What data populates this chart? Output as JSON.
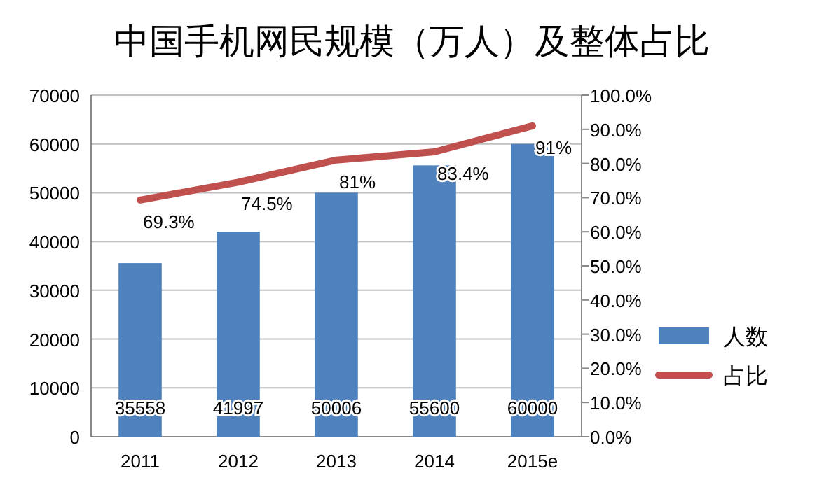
{
  "chart_data": {
    "type": "bar",
    "title": "中国手机网民规模（万人）及整体占比",
    "categories": [
      "2011",
      "2012",
      "2013",
      "2014",
      "2015e"
    ],
    "series": [
      {
        "name": "人数",
        "color": "#4f81bd",
        "values": [
          35558,
          41997,
          50006,
          55600,
          60000
        ],
        "value_labels": [
          "35558",
          "41997",
          "50006",
          "55600",
          "60000"
        ]
      },
      {
        "name": "占比",
        "type": "line",
        "axis": "y2",
        "color": "#c0504d",
        "values": [
          69.3,
          74.5,
          81,
          83.4,
          91
        ],
        "value_labels": [
          "69.3%",
          "74.5%",
          "81%",
          "83.4%",
          "91%"
        ]
      }
    ],
    "ylim": [
      0,
      70000
    ],
    "yticks": [
      0,
      10000,
      20000,
      30000,
      40000,
      50000,
      60000,
      70000
    ],
    "y2lim": [
      0,
      100
    ],
    "y2ticks": [
      {
        "value": 0,
        "label": "0.0%"
      },
      {
        "value": 10,
        "label": "10.0%"
      },
      {
        "value": 20,
        "label": "20.0%"
      },
      {
        "value": 30,
        "label": "30.0%"
      },
      {
        "value": 40,
        "label": "40.0%"
      },
      {
        "value": 50,
        "label": "50.0%"
      },
      {
        "value": 60,
        "label": "60.0%"
      },
      {
        "value": 70,
        "label": "70.0%"
      },
      {
        "value": 80,
        "label": "80.0%"
      },
      {
        "value": 90,
        "label": "90.0%"
      },
      {
        "value": 100,
        "label": "100.0%"
      }
    ],
    "grid": "y",
    "legend": "right",
    "marker": "none",
    "line_style": "solid"
  }
}
